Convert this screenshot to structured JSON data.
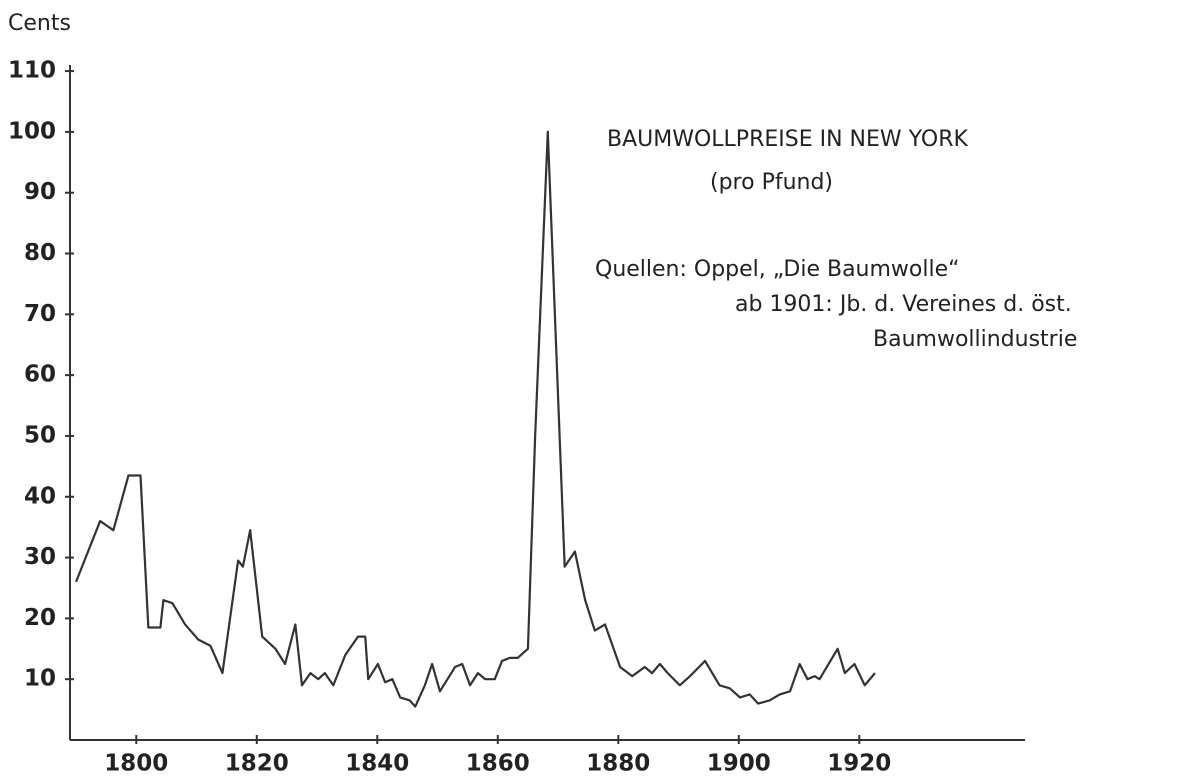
{
  "chart_data": {
    "type": "line",
    "y_axis_label": "Cents",
    "annotations": [
      "BAUMWOLLPREISE IN NEW YORK",
      "(pro Pfund)",
      "Quellen: Oppel, „Die Baumwolle“",
      "ab 1901: Jb. d. Vereines d. öst.",
      "Baumwollindustrie"
    ],
    "xlim": [
      1789,
      1947.5
    ],
    "ylim": [
      0,
      111
    ],
    "xticks": [
      1800,
      1820,
      1840,
      1860,
      1880,
      1900,
      1920
    ],
    "yticks": [
      10,
      20,
      30,
      40,
      50,
      60,
      70,
      80,
      90,
      100,
      110
    ],
    "grid": false,
    "series": [
      {
        "color": "#333333",
        "x": [
          1790,
          1794.0,
          1796.2,
          1798.7,
          1800.7,
          1802,
          1804,
          1804.5,
          1806,
          1808.1,
          1810.3,
          1812.3,
          1814.3,
          1816.9,
          1817.7,
          1818.9,
          1820.9,
          1823.1,
          1824.7,
          1826.4,
          1827.5,
          1828.9,
          1830.2,
          1831.3,
          1832.7,
          1834.7,
          1836.8,
          1838,
          1838.5,
          1840.1,
          1841.3,
          1842.5,
          1843.8,
          1845.4,
          1846.3,
          1847.9,
          1849.1,
          1850.4,
          1852.9,
          1854.1,
          1855.4,
          1856.7,
          1857.9,
          1859.5,
          1860.7,
          1862,
          1863.3,
          1865,
          1866.2,
          1868.3,
          1871.1,
          1872.8,
          1874.5,
          1876.1,
          1877.8,
          1880.3,
          1882.3,
          1884.4,
          1885.6,
          1886.9,
          1888.2,
          1890.2,
          1891.9,
          1894.4,
          1896.8,
          1898.5,
          1900.2,
          1901.8,
          1903.2,
          1905.1,
          1906.8,
          1908.5,
          1910.1,
          1911.4,
          1912.6,
          1913.4,
          1916.4,
          1917.6,
          1919.2,
          1920.9,
          1922.6
        ],
        "values": [
          26,
          36,
          34.5,
          43.5,
          43.5,
          18.5,
          18.5,
          23,
          22.5,
          19,
          16.5,
          15.5,
          11,
          29.5,
          28.5,
          34.5,
          17,
          15,
          12.5,
          19,
          9,
          11,
          10,
          11,
          9,
          14,
          17,
          17,
          10,
          12.5,
          9.5,
          10,
          7,
          6.5,
          5.5,
          9,
          12.5,
          8,
          12,
          12.5,
          9,
          11,
          10,
          10,
          13,
          13.5,
          13.5,
          15,
          50,
          100,
          28.5,
          31,
          23,
          18,
          19,
          12,
          10.5,
          12,
          11,
          12.5,
          11,
          9,
          10.5,
          13,
          9,
          8.5,
          7,
          7.5,
          6,
          6.5,
          7.5,
          8,
          12.5,
          10,
          10.5,
          10,
          15,
          11,
          12.5,
          9,
          11
        ]
      }
    ]
  }
}
